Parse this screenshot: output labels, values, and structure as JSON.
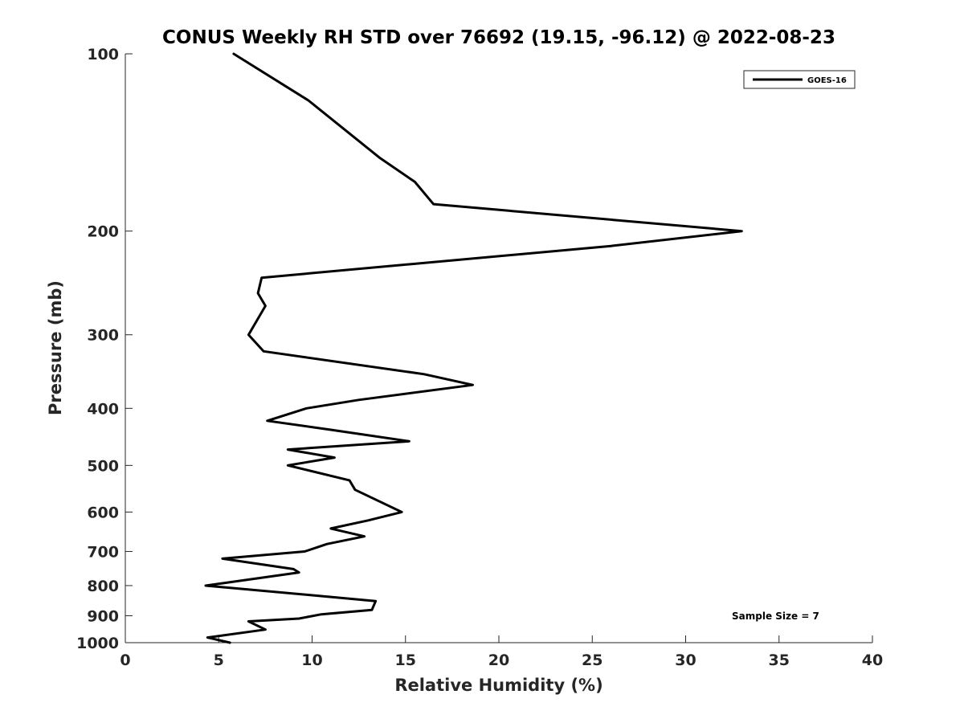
{
  "chart_data": {
    "type": "line",
    "title": "CONUS Weekly RH STD over 76692 (19.15, -96.12) @ 2022-08-23",
    "xlabel": "Relative Humidity (%)",
    "ylabel": "Pressure (mb)",
    "xlim": [
      0,
      40
    ],
    "ylim": [
      100,
      1000
    ],
    "y_scale": "log",
    "y_reversed": true,
    "x_ticks": [
      "0",
      "5",
      "10",
      "15",
      "20",
      "25",
      "30",
      "35",
      "40"
    ],
    "y_ticks": [
      "100",
      "200",
      "300",
      "400",
      "500",
      "600",
      "700",
      "800",
      "900",
      "1000"
    ],
    "grid": false,
    "legend_position": "top-right",
    "annotation": "Sample Size = 7",
    "series": [
      {
        "name": "GOES-16",
        "color": "#000000",
        "x": [
          5.8,
          9.8,
          13.6,
          15.5,
          16.5,
          33.0,
          26.0,
          7.3,
          7.1,
          7.5,
          6.6,
          7.4,
          16.0,
          18.6,
          12.5,
          9.7,
          7.6,
          11.0,
          15.2,
          8.7,
          11.2,
          8.7,
          12.0,
          12.3,
          14.8,
          13.0,
          11.0,
          12.8,
          10.8,
          9.6,
          5.2,
          9.0,
          9.3,
          4.3,
          9.9,
          13.4,
          13.2,
          10.5,
          9.3,
          6.6,
          7.5,
          4.4,
          5.6
        ],
        "y": [
          100,
          120,
          150,
          165,
          180,
          200,
          212,
          240,
          255,
          268,
          300,
          320,
          350,
          365,
          387,
          400,
          420,
          435,
          455,
          470,
          485,
          500,
          530,
          550,
          600,
          620,
          640,
          660,
          680,
          700,
          720,
          750,
          760,
          800,
          830,
          850,
          880,
          895,
          910,
          920,
          950,
          980,
          1000
        ]
      }
    ]
  }
}
